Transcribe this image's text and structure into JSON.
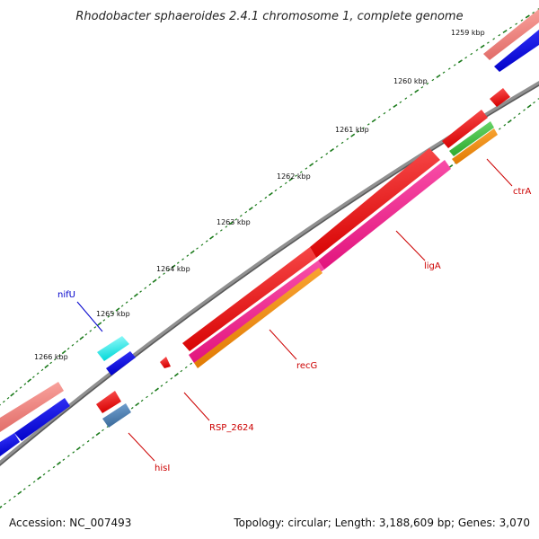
{
  "title": "Rhodobacter sphaeroides 2.4.1 chromosome 1, complete genome",
  "footer": {
    "accession": "Accession: NC_007493",
    "summary": "Topology: circular; Length: 3,188,609 bp; Genes: 3,070"
  },
  "ticks": [
    {
      "label": "1259 kbp"
    },
    {
      "label": "1260 kbp"
    },
    {
      "label": "1261 kbp"
    },
    {
      "label": "1262 kbp"
    },
    {
      "label": "1263 kbp"
    },
    {
      "label": "1264 kbp"
    },
    {
      "label": "1265 kbp"
    },
    {
      "label": "1266 kbp"
    }
  ],
  "gene_labels": [
    {
      "name": "nifU",
      "color": "#0000cc"
    },
    {
      "name": "ctrA",
      "color": "#cc0000"
    },
    {
      "name": "ligA",
      "color": "#cc0000"
    },
    {
      "name": "recG",
      "color": "#cc0000"
    },
    {
      "name": "RSP_2624",
      "color": "#cc0000"
    },
    {
      "name": "hisI",
      "color": "#cc0000"
    }
  ],
  "colors": {
    "backbone": "#808080",
    "forward_gene": "#ff0000",
    "reverse_gene": "#0000ff",
    "rna_gene": "#fa8072",
    "magenta_track": "#ff1493",
    "orange_track": "#ff8c00",
    "green_track": "#32cd32",
    "cyan_track": "#00ffff",
    "steel_track": "#4682b4",
    "tick_dots": "#1a7a1a"
  }
}
